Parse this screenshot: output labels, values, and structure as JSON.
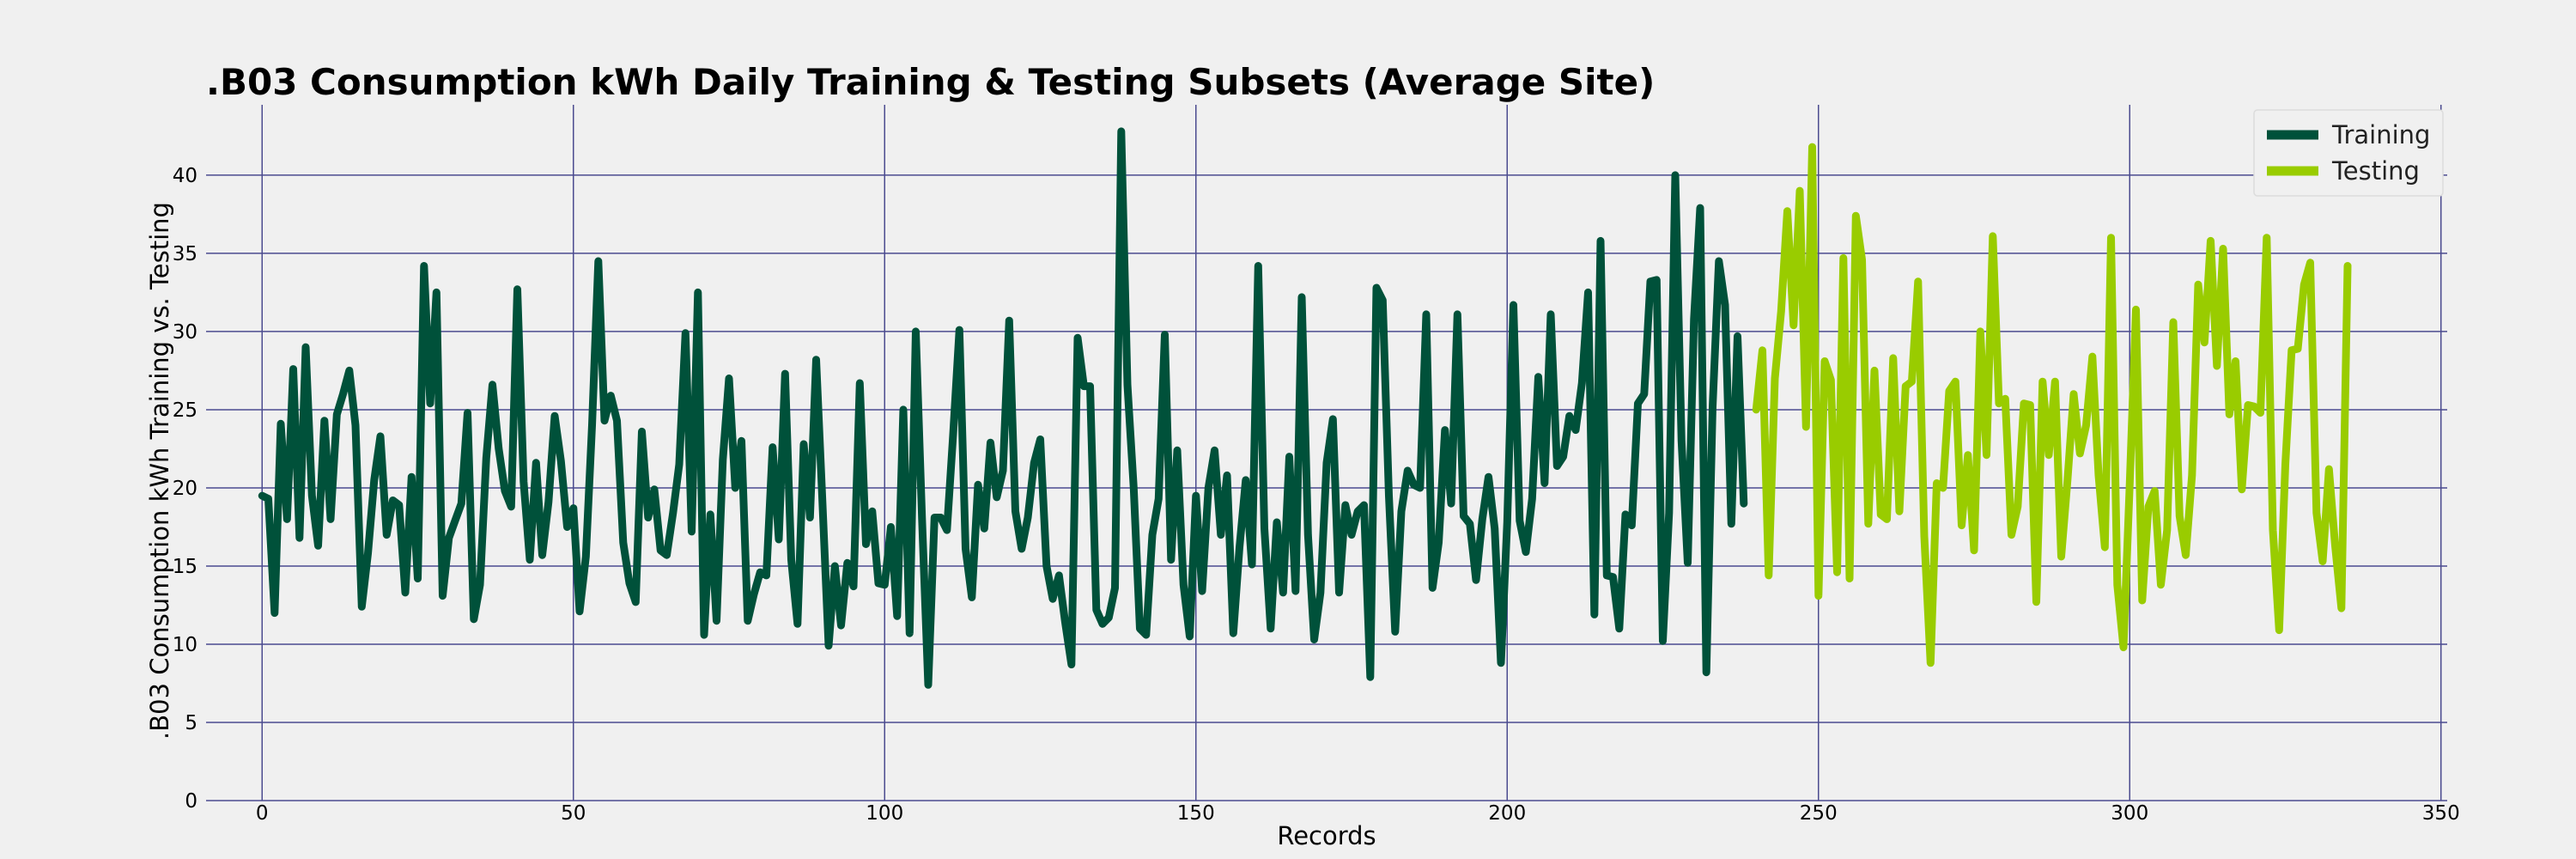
{
  "chart_data": {
    "type": "line",
    "title": ".B03 Consumption kWh Daily Training & Testing Subsets (Average Site)",
    "xlabel": "Records",
    "ylabel": ".B03 Consumption kWh Training vs. Testing",
    "xlim": [
      -9,
      351
    ],
    "ylim": [
      0,
      44.5
    ],
    "xticks": [
      0,
      50,
      100,
      150,
      200,
      250,
      300,
      350
    ],
    "yticks": [
      0,
      5,
      10,
      15,
      20,
      25,
      30,
      35,
      40
    ],
    "grid": true,
    "legend_position": "top-right",
    "series": [
      {
        "name": "Training",
        "color": "#00513a",
        "x_start": 0,
        "values": [
          19.5,
          19.3,
          12.0,
          24.1,
          18.0,
          27.6,
          16.8,
          29.0,
          19.5,
          16.3,
          24.3,
          18.0,
          24.7,
          26.0,
          27.5,
          24.0,
          12.4,
          15.8,
          20.5,
          23.3,
          17.0,
          19.2,
          18.9,
          13.3,
          20.7,
          14.2,
          34.2,
          25.4,
          32.5,
          13.1,
          16.8,
          17.9,
          19.0,
          24.8,
          11.6,
          13.8,
          21.9,
          26.6,
          22.5,
          19.8,
          18.8,
          32.7,
          20.4,
          15.4,
          21.6,
          15.7,
          19.1,
          24.6,
          21.7,
          17.5,
          18.7,
          12.1,
          15.6,
          24.0,
          34.5,
          24.3,
          25.9,
          24.3,
          16.5,
          13.9,
          12.7,
          23.6,
          18.1,
          19.9,
          16.0,
          15.7,
          18.4,
          21.5,
          29.9,
          17.2,
          32.5,
          10.6,
          18.3,
          11.5,
          21.8,
          27.0,
          20.0,
          23.0,
          11.5,
          13.2,
          14.6,
          14.4,
          22.6,
          16.7,
          27.3,
          15.4,
          11.3,
          22.8,
          18.1,
          28.2,
          19.1,
          9.9,
          15.0,
          11.2,
          15.2,
          13.7,
          26.7,
          16.4,
          18.5,
          13.9,
          13.8,
          17.5,
          11.8,
          25.0,
          10.7,
          30.0,
          18.0,
          7.4,
          18.1,
          18.1,
          17.3,
          23.4,
          30.1,
          16.1,
          13.0,
          20.2,
          17.4,
          22.9,
          19.4,
          21.1,
          30.7,
          18.5,
          16.1,
          18.1,
          21.6,
          23.1,
          15.0,
          12.9,
          14.4,
          11.4,
          8.7,
          29.6,
          26.5,
          26.5,
          12.2,
          11.3,
          11.7,
          13.6,
          42.8,
          26.6,
          20.0,
          11.0,
          10.6,
          17.0,
          19.3,
          29.8,
          15.4,
          22.4,
          13.8,
          10.5,
          19.5,
          13.4,
          20.0,
          22.4,
          17.0,
          20.8,
          10.7,
          16.2,
          20.5,
          15.1,
          34.2,
          17.4,
          11.0,
          17.8,
          13.3,
          22.0,
          13.4,
          32.2,
          17.0,
          10.3,
          13.3,
          21.6,
          24.4,
          13.3,
          18.9,
          17.0,
          18.5,
          18.9,
          7.9,
          32.8,
          32.0,
          19.5,
          10.8,
          18.5,
          21.1,
          20.2,
          20.0,
          31.1,
          13.6,
          16.5,
          23.7,
          19.0,
          31.1,
          18.2,
          17.7,
          14.1,
          18.0,
          20.7,
          17.4,
          8.8,
          17.8,
          31.7,
          17.9,
          15.9,
          19.3,
          27.1,
          20.3,
          31.1,
          21.4,
          22.0,
          24.6,
          23.7,
          26.7,
          32.5,
          11.9,
          35.8,
          14.4,
          14.3,
          11.0,
          18.3,
          17.6,
          25.4,
          26.0,
          33.2,
          33.3,
          10.2,
          18.4,
          40.0,
          23.0,
          15.2,
          30.8,
          37.9,
          8.2,
          25.2,
          34.5,
          31.7,
          17.7,
          29.7,
          19.0
        ]
      },
      {
        "name": "Testing",
        "color": "#99cc00",
        "x_start": 240,
        "values": [
          25.0,
          28.8,
          14.4,
          27.0,
          31.3,
          37.7,
          30.4,
          39.0,
          23.9,
          41.8,
          13.1,
          28.1,
          26.9,
          14.6,
          34.7,
          14.2,
          37.4,
          34.6,
          17.7,
          27.5,
          18.3,
          18.0,
          28.3,
          18.5,
          26.5,
          26.8,
          33.2,
          16.9,
          8.8,
          20.3,
          20.0,
          26.2,
          26.8,
          17.6,
          22.1,
          16.0,
          30.0,
          22.1,
          36.1,
          25.4,
          25.7,
          17.0,
          18.8,
          25.4,
          25.3,
          12.7,
          26.8,
          22.1,
          26.8,
          15.6,
          20.5,
          26.0,
          22.2,
          24.0,
          28.4,
          20.8,
          16.2,
          36.0,
          13.8,
          9.8,
          20.3,
          31.4,
          12.8,
          18.8,
          19.8,
          13.8,
          17.3,
          30.6,
          18.2,
          15.7,
          20.8,
          33.0,
          29.3,
          35.8,
          27.8,
          35.3,
          24.7,
          28.1,
          19.9,
          25.3,
          25.2,
          24.8,
          36.0,
          17.3,
          10.9,
          21.5,
          28.8,
          28.9,
          33.0,
          34.4,
          18.4,
          15.3,
          21.2,
          16.3,
          12.3,
          34.2
        ]
      }
    ]
  }
}
